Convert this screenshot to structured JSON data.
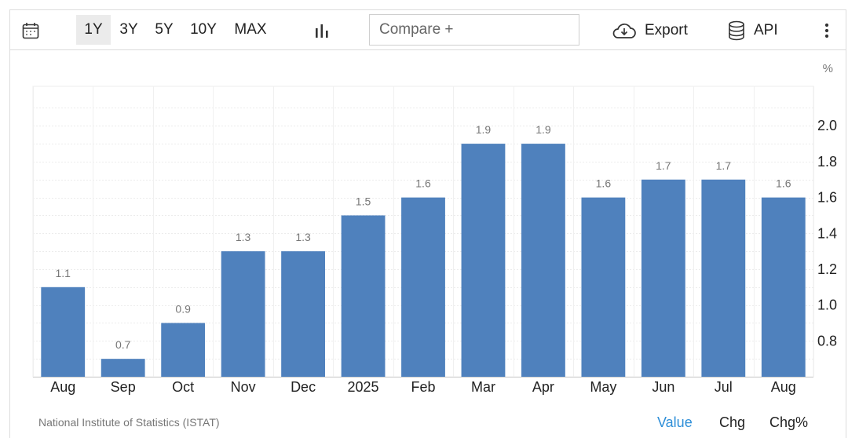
{
  "toolbar": {
    "ranges": [
      "1Y",
      "3Y",
      "5Y",
      "10Y",
      "MAX"
    ],
    "active_range": "1Y",
    "compare_placeholder": "Compare +",
    "export_label": "Export",
    "api_label": "API",
    "icons": [
      "calendar-icon",
      "bar-chart-icon",
      "cloud-download-icon",
      "database-icon",
      "more-vertical-icon"
    ]
  },
  "chart_data": {
    "type": "bar",
    "categories": [
      "Aug",
      "Sep",
      "Oct",
      "Nov",
      "Dec",
      "2025",
      "Feb",
      "Mar",
      "Apr",
      "May",
      "Jun",
      "Jul",
      "Aug"
    ],
    "values": [
      1.1,
      0.7,
      0.9,
      1.3,
      1.3,
      1.5,
      1.6,
      1.9,
      1.9,
      1.6,
      1.7,
      1.7,
      1.6
    ],
    "value_labels": [
      "1.1",
      "0.7",
      "0.9",
      "1.3",
      "1.3",
      "1.5",
      "1.6",
      "1.9",
      "1.9",
      "1.6",
      "1.7",
      "1.7",
      "1.6"
    ],
    "y_ticks": [
      "0.8",
      "1.0",
      "1.2",
      "1.4",
      "1.6",
      "1.8",
      "2.0"
    ],
    "y_tick_values": [
      0.8,
      1.0,
      1.2,
      1.4,
      1.6,
      1.8,
      2.0
    ],
    "ylim": [
      0.6,
      2.22
    ],
    "unit": "%",
    "bar_color": "#4f81bd",
    "grid": true,
    "y_axis_side": "right"
  },
  "footer": {
    "source": "National Institute of Statistics (ISTAT)",
    "tabs": [
      "Value",
      "Chg",
      "Chg%"
    ],
    "active_tab": "Value",
    "active_color": "#2f8fd8"
  }
}
